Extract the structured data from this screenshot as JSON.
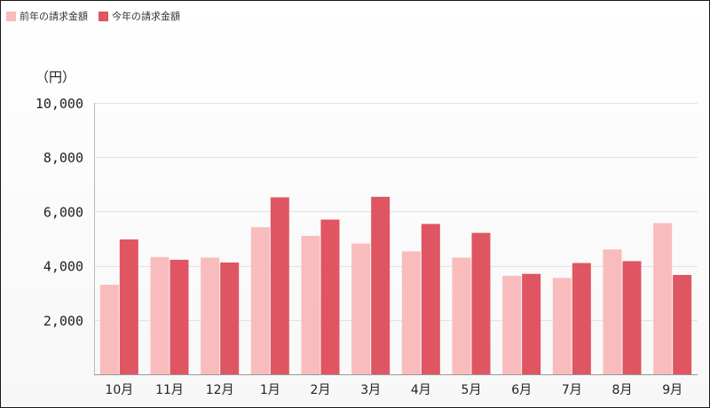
{
  "chart_data": {
    "type": "bar",
    "categories": [
      "10月",
      "11月",
      "12月",
      "1月",
      "2月",
      "3月",
      "4月",
      "5月",
      "6月",
      "7月",
      "8月",
      "9月"
    ],
    "series": [
      {
        "name": "前年の請求金額",
        "color": "#f9bcbc",
        "values": [
          3300,
          4320,
          4300,
          5420,
          5100,
          4820,
          4530,
          4300,
          3630,
          3550,
          4600,
          5570
        ]
      },
      {
        "name": "今年の請求金額",
        "color": "#e05562",
        "values": [
          4970,
          4220,
          4120,
          6520,
          5700,
          6540,
          5540,
          5210,
          3700,
          4100,
          4170,
          3660
        ]
      }
    ],
    "ylabel": "（円）",
    "ylim": [
      0,
      10000
    ],
    "yticks": [
      "10,000",
      "8,000",
      "6,000",
      "4,000",
      "2,000"
    ],
    "ytick_values": [
      10000,
      8000,
      6000,
      4000,
      2000
    ],
    "grid": true,
    "legend": "top-left"
  }
}
